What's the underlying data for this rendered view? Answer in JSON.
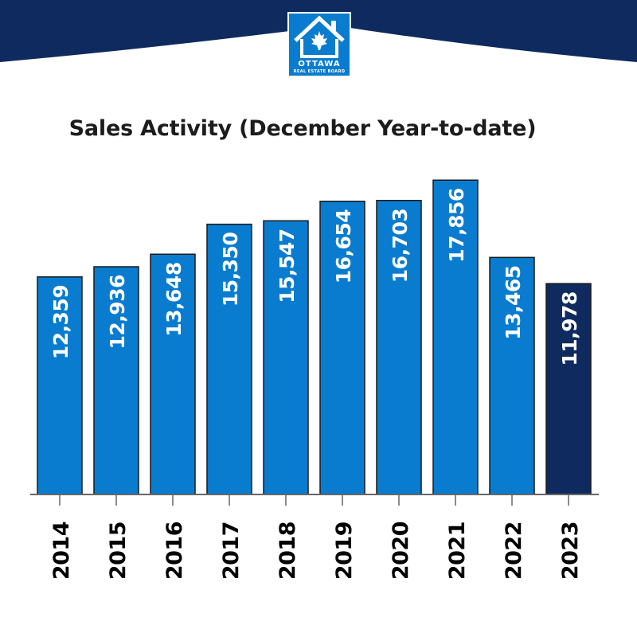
{
  "logo": {
    "line1": "OTTAWA",
    "line2": "REAL ESTATE BOARD",
    "icon": "house-maple-leaf-icon"
  },
  "colors": {
    "header_band": "#0f2a5e",
    "bar": "#0a7ccf",
    "highlight_bar": "#0f2a5e",
    "bar_text": "#ffffff",
    "axis_label": "#000000"
  },
  "chart_data": {
    "type": "bar",
    "title": "Sales Activity (December Year-to-date)",
    "xlabel": "",
    "ylabel": "",
    "categories": [
      "2014",
      "2015",
      "2016",
      "2017",
      "2018",
      "2019",
      "2020",
      "2021",
      "2022",
      "2023"
    ],
    "values": [
      12359,
      12936,
      13648,
      15350,
      15547,
      16654,
      16703,
      17856,
      13465,
      11978
    ],
    "value_labels": [
      "12,359",
      "12,936",
      "13,648",
      "15,350",
      "15,547",
      "16,654",
      "16,703",
      "17,856",
      "13,465",
      "11,978"
    ],
    "highlight_category": "2023",
    "ylim": [
      0,
      18500
    ],
    "grid": false,
    "legend": "none"
  }
}
